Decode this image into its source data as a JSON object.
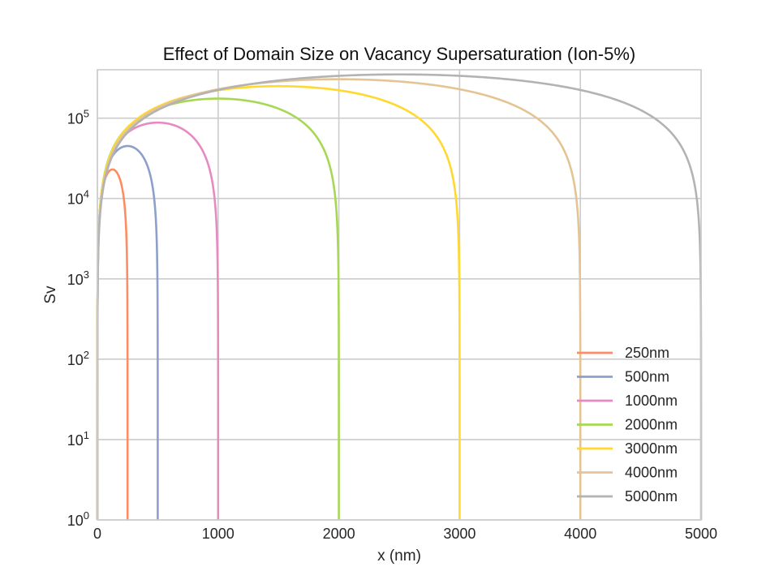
{
  "chart_data": {
    "type": "line",
    "title": "Effect of Domain Size on Vacancy Supersaturation (Ion-5%)",
    "xlabel": "x (nm)",
    "ylabel": "Sv",
    "xlim": [
      0,
      5000
    ],
    "ylim": [
      1,
      400000
    ],
    "yscale": "log",
    "grid": true,
    "legend_position": "lower-right",
    "x_ticks": [
      "0",
      "1000",
      "2000",
      "3000",
      "4000",
      "5000"
    ],
    "y_ticks": [
      {
        "base": "10",
        "exp": "0"
      },
      {
        "base": "10",
        "exp": "1"
      },
      {
        "base": "10",
        "exp": "2"
      },
      {
        "base": "10",
        "exp": "3"
      },
      {
        "base": "10",
        "exp": "4"
      },
      {
        "base": "10",
        "exp": "5"
      }
    ],
    "series": [
      {
        "name": "250nm",
        "length": 250,
        "peak": 23000,
        "color": "#fc8d62"
      },
      {
        "name": "500nm",
        "length": 500,
        "peak": 45000,
        "color": "#8da0cb"
      },
      {
        "name": "1000nm",
        "length": 1000,
        "peak": 88000,
        "color": "#e78ac3"
      },
      {
        "name": "2000nm",
        "length": 2000,
        "peak": 175000,
        "color": "#a6d854"
      },
      {
        "name": "3000nm",
        "length": 3000,
        "peak": 250000,
        "color": "#ffd92f"
      },
      {
        "name": "4000nm",
        "length": 4000,
        "peak": 305000,
        "color": "#e5c494"
      },
      {
        "name": "5000nm",
        "length": 5000,
        "peak": 350000,
        "color": "#b3b3b3"
      }
    ]
  }
}
